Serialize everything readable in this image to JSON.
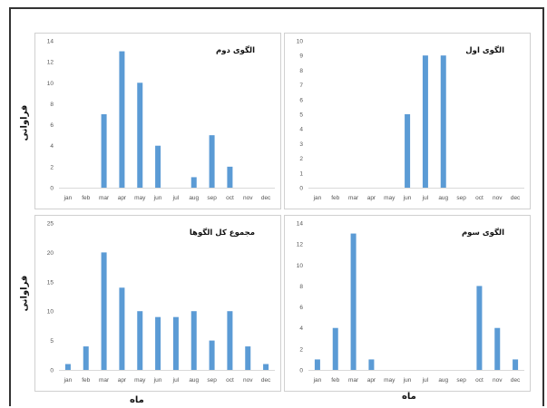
{
  "chart_data": [
    {
      "type": "bar",
      "title": "الگوی دوم",
      "categories": [
        "jan",
        "feb",
        "mar",
        "apr",
        "may",
        "jun",
        "jul",
        "aug",
        "sep",
        "oct",
        "nov",
        "dec"
      ],
      "values": [
        0,
        0,
        7,
        13,
        10,
        4,
        0,
        1,
        5,
        2,
        0,
        0
      ],
      "ylim": [
        0,
        14
      ],
      "yticks": [
        0,
        2,
        4,
        6,
        8,
        10,
        12,
        14
      ],
      "color": "#5b9bd5",
      "grid": false
    },
    {
      "type": "bar",
      "title": "الگوی اول",
      "categories": [
        "jan",
        "feb",
        "mar",
        "apr",
        "may",
        "jun",
        "jul",
        "aug",
        "sep",
        "oct",
        "nov",
        "dec"
      ],
      "values": [
        0,
        0,
        0,
        0,
        0,
        5,
        9,
        9,
        0,
        0,
        0,
        0
      ],
      "ylim": [
        0,
        10
      ],
      "yticks": [
        0,
        1,
        2,
        3,
        4,
        5,
        6,
        7,
        8,
        9,
        10
      ],
      "color": "#5b9bd5",
      "grid": false
    },
    {
      "type": "bar",
      "title": "مجموع کل الگوها",
      "categories": [
        "jan",
        "feb",
        "mar",
        "apr",
        "may",
        "jun",
        "jul",
        "aug",
        "sep",
        "oct",
        "nov",
        "dec"
      ],
      "values": [
        1,
        4,
        20,
        14,
        10,
        9,
        9,
        10,
        5,
        10,
        4,
        1
      ],
      "ylim": [
        0,
        25
      ],
      "yticks": [
        0,
        5,
        10,
        15,
        20,
        25
      ],
      "color": "#5b9bd5",
      "grid": false
    },
    {
      "type": "bar",
      "title": "الگوی سوم",
      "categories": [
        "jan",
        "feb",
        "mar",
        "apr",
        "may",
        "jun",
        "jul",
        "aug",
        "sep",
        "oct",
        "nov",
        "dec"
      ],
      "values": [
        1,
        4,
        13,
        1,
        0,
        0,
        0,
        0,
        0,
        8,
        4,
        1
      ],
      "ylim": [
        0,
        14
      ],
      "yticks": [
        0,
        2,
        4,
        6,
        8,
        10,
        12,
        14
      ],
      "color": "#5b9bd5",
      "grid": false
    }
  ],
  "labels": {
    "y_axis_top": "فراوانی",
    "y_axis_bottom": "فراوانی",
    "x_axis_left": "ماه",
    "x_axis_right": "ماه"
  }
}
